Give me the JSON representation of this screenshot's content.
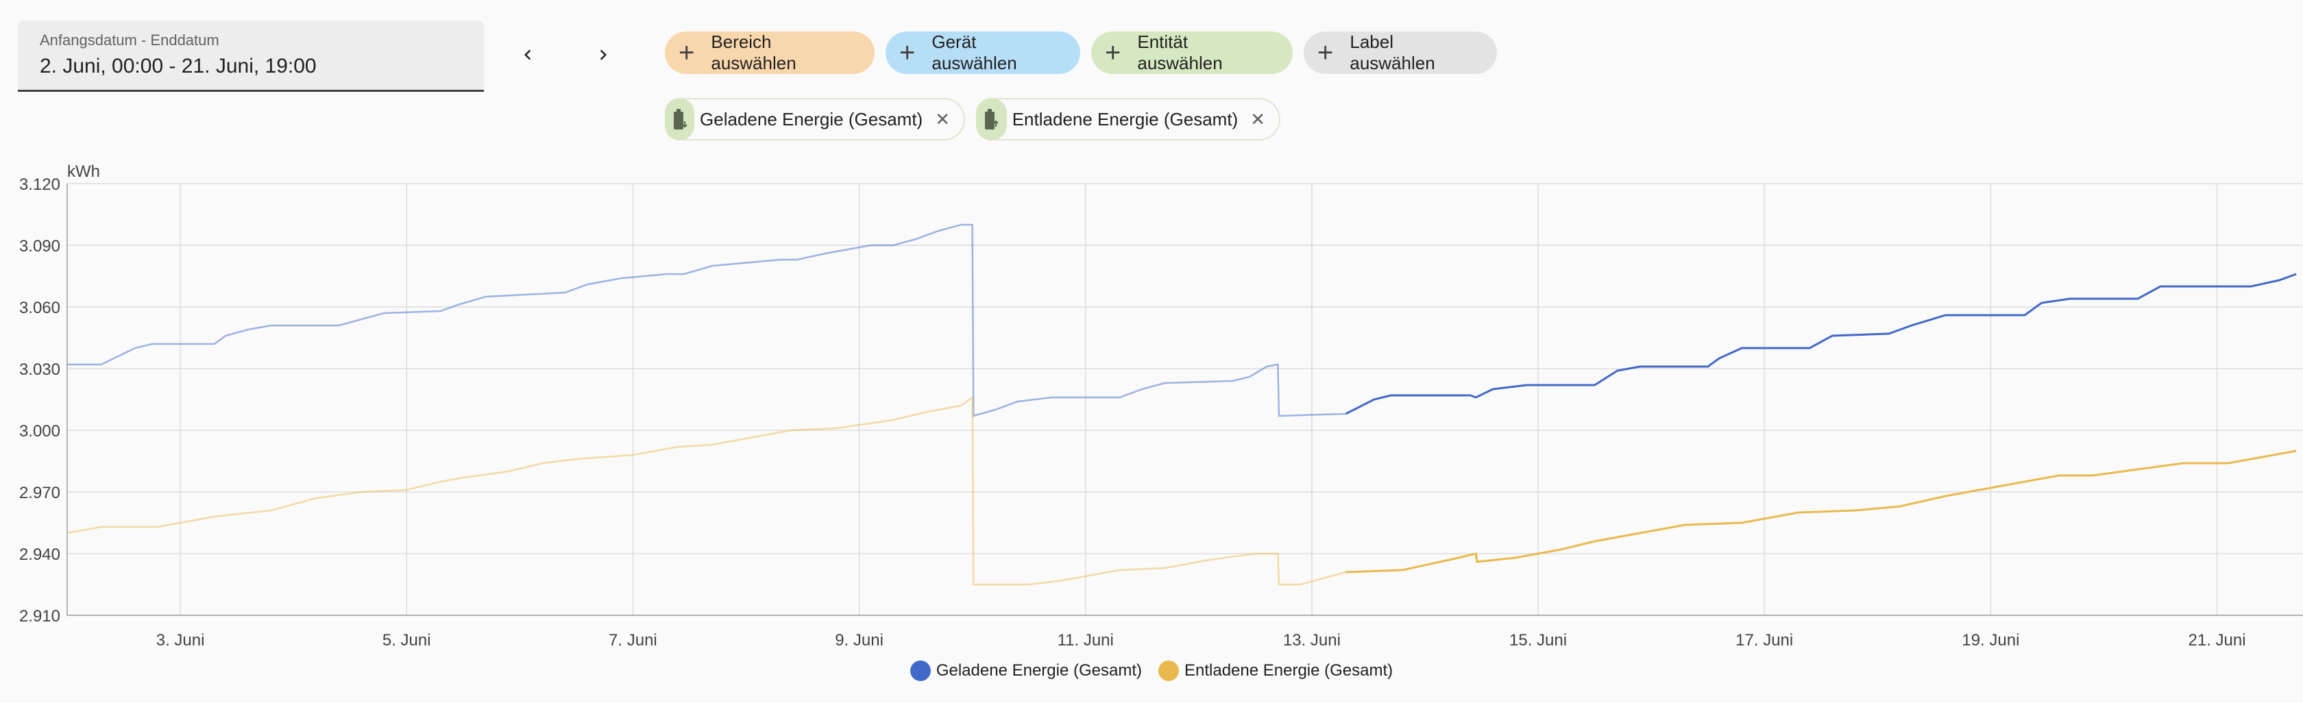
{
  "date_picker": {
    "label": "Anfangsdatum - Enddatum",
    "value": "2. Juni, 00:00 - 21. Juni, 19:00"
  },
  "nav": {
    "prev_icon": "chevron-left-icon",
    "next_icon": "chevron-right-icon"
  },
  "filters": [
    {
      "label": "Bereich auswählen",
      "color": "#f8d7ac"
    },
    {
      "label": "Gerät auswählen",
      "color": "#b7def7"
    },
    {
      "label": "Entität auswählen",
      "color": "#d6e8c1"
    },
    {
      "label": "Label auswählen",
      "color": "#e3e3e3"
    }
  ],
  "entities": [
    {
      "label": "Geladene Energie (Gesamt)",
      "icon": "battery-charging-icon"
    },
    {
      "label": "Entladene Energie (Gesamt)",
      "icon": "battery-discharging-icon"
    }
  ],
  "chart_data": {
    "type": "line",
    "ylabel": "kWh",
    "ylim": [
      2910,
      3120
    ],
    "yticks": [
      2910,
      2940,
      2970,
      3000,
      3030,
      3060,
      3090,
      3120
    ],
    "ytick_labels": [
      "2.910",
      "2.940",
      "2.970",
      "3.000",
      "3.030",
      "3.060",
      "3.090",
      "3.120"
    ],
    "xlim": [
      2.0,
      21.76
    ],
    "xticks": [
      3,
      5,
      7,
      9,
      11,
      13,
      15,
      17,
      19,
      21
    ],
    "xtick_labels": [
      "3. Juni",
      "5. Juni",
      "7. Juni",
      "9. Juni",
      "11. Juni",
      "13. Juni",
      "15. Juni",
      "17. Juni",
      "19. Juni",
      "21. Juni"
    ],
    "grid": true,
    "legend_position": "bottom",
    "series": [
      {
        "name": "Geladene Energie (Gesamt)",
        "color": "#4169c9",
        "faded_until": 13.3,
        "x": [
          2.0,
          2.3,
          2.45,
          2.6,
          2.75,
          3.3,
          3.4,
          3.6,
          3.8,
          4.4,
          4.6,
          4.8,
          5.3,
          5.45,
          5.7,
          6.4,
          6.6,
          6.9,
          7.3,
          7.45,
          7.7,
          8.3,
          8.45,
          8.7,
          9.1,
          9.3,
          9.5,
          9.7,
          9.9,
          10.0,
          10.01,
          10.2,
          10.4,
          10.7,
          11.3,
          11.5,
          11.7,
          12.3,
          12.45,
          12.6,
          12.7,
          12.71,
          13.3,
          13.55,
          13.7,
          14.4,
          14.45,
          14.6,
          14.9,
          15.5,
          15.7,
          15.9,
          16.5,
          16.6,
          16.8,
          17.4,
          17.6,
          18.1,
          18.3,
          18.6,
          19.3,
          19.45,
          19.7,
          20.3,
          20.5,
          21.3,
          21.55,
          21.7
        ],
        "values": [
          3032,
          3032,
          3036,
          3040,
          3042,
          3042,
          3046,
          3049,
          3051,
          3051,
          3054,
          3057,
          3058,
          3061,
          3065,
          3067,
          3071,
          3074,
          3076,
          3076,
          3080,
          3083,
          3083,
          3086,
          3090,
          3090,
          3093,
          3097,
          3100,
          3100,
          3007,
          3010,
          3014,
          3016,
          3016,
          3020,
          3023,
          3024,
          3026,
          3031,
          3032,
          3007,
          3008,
          3015,
          3017,
          3017,
          3016,
          3020,
          3022,
          3022,
          3029,
          3031,
          3031,
          3035,
          3040,
          3040,
          3046,
          3047,
          3051,
          3056,
          3056,
          3062,
          3064,
          3064,
          3070,
          3070,
          3073,
          3076
        ]
      },
      {
        "name": "Entladene Energie (Gesamt)",
        "color": "#e9b94e",
        "faded_until": 13.3,
        "x": [
          2.0,
          2.3,
          2.8,
          3.3,
          3.8,
          4.2,
          4.6,
          5.0,
          5.3,
          5.5,
          5.9,
          6.2,
          6.5,
          7.0,
          7.4,
          7.7,
          8.0,
          8.4,
          8.8,
          9.3,
          9.6,
          9.9,
          10.0,
          10.01,
          10.5,
          10.8,
          11.3,
          11.7,
          12.1,
          12.5,
          12.7,
          12.71,
          12.9,
          13.3,
          13.8,
          14.3,
          14.45,
          14.46,
          14.8,
          15.2,
          15.5,
          15.9,
          16.3,
          16.8,
          17.3,
          17.8,
          18.2,
          18.6,
          18.8,
          19.2,
          19.6,
          19.9,
          20.3,
          20.7,
          21.1,
          21.5,
          21.7
        ],
        "values": [
          2950,
          2953,
          2953,
          2958,
          2961,
          2967,
          2970,
          2971,
          2975,
          2977,
          2980,
          2984,
          2986,
          2988,
          2992,
          2993,
          2996,
          3000,
          3001,
          3005,
          3009,
          3012,
          3016,
          2925,
          2925,
          2927,
          2932,
          2933,
          2937,
          2940,
          2940,
          2925,
          2925,
          2931,
          2932,
          2938,
          2940,
          2936,
          2938,
          2942,
          2946,
          2950,
          2954,
          2955,
          2960,
          2961,
          2963,
          2968,
          2970,
          2974,
          2978,
          2978,
          2981,
          2984,
          2984,
          2988,
          2990
        ]
      }
    ]
  }
}
